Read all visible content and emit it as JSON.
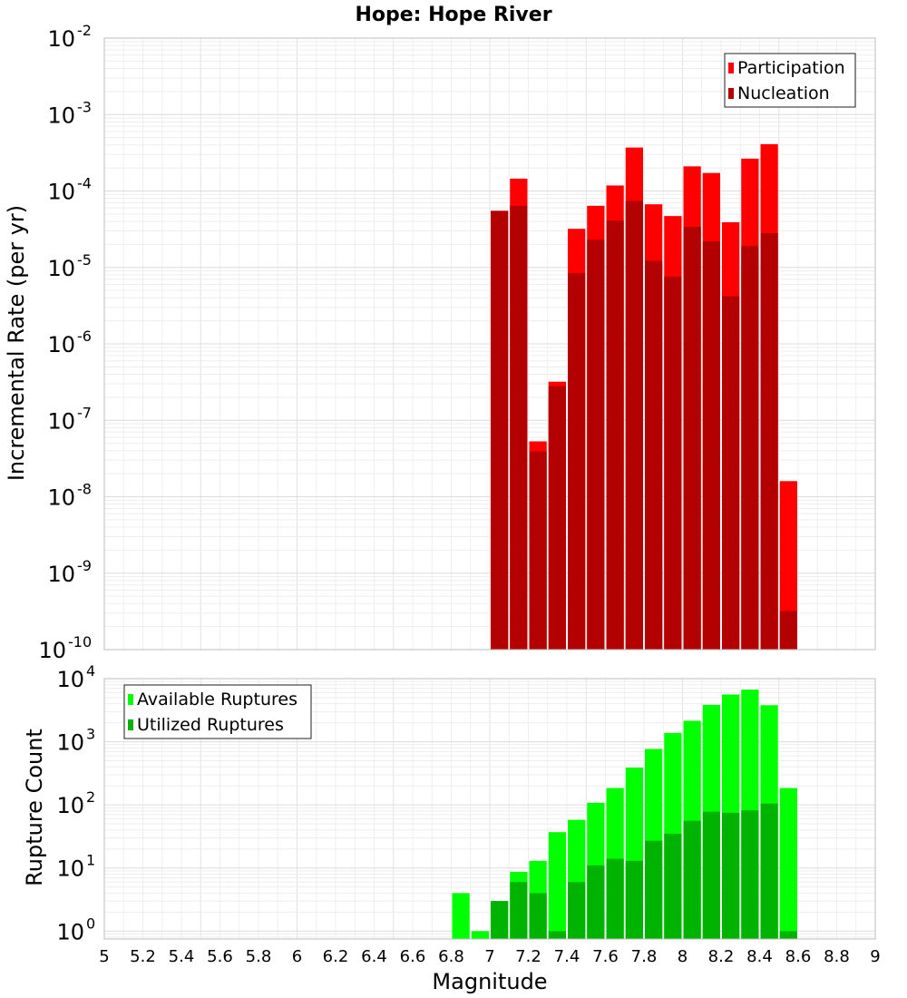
{
  "chart_data": [
    {
      "type": "bar",
      "title": "Hope: Hope River",
      "xlabel": "",
      "ylabel": "Incremental Rate (per yr)",
      "yscale": "log",
      "ylim": [
        1e-10,
        0.01
      ],
      "xlim": [
        5,
        9
      ],
      "y_tick_base": "10",
      "y_tick_exponents": [
        "-10",
        "-9",
        "-8",
        "-7",
        "-6",
        "-5",
        "-4",
        "-3",
        "-2"
      ],
      "grid": true,
      "legend_position": "top-right",
      "bar_width": 0.1,
      "x": [
        7.05,
        7.15,
        7.25,
        7.35,
        7.45,
        7.55,
        7.65,
        7.75,
        7.85,
        7.95,
        8.05,
        8.15,
        8.25,
        8.35,
        8.45,
        8.55
      ],
      "series": [
        {
          "name": "Participation",
          "color": "#ff0000",
          "values": [
            5.5e-05,
            0.000145,
            5.3e-08,
            3.2e-07,
            3.2e-05,
            6.4e-05,
            0.000118,
            0.00037,
            6.7e-05,
            4.7e-05,
            0.00021,
            0.000172,
            3.9e-05,
            0.000265,
            0.00041,
            1.6e-08
          ]
        },
        {
          "name": "Nucleation",
          "color": "#b30000",
          "values": [
            5.5e-05,
            6.4e-05,
            3.9e-08,
            2.8e-07,
            8.4e-06,
            2.3e-05,
            4.1e-05,
            7.4e-05,
            1.22e-05,
            7.6e-06,
            3.4e-05,
            2.2e-05,
            4.2e-06,
            1.9e-05,
            2.8e-05,
            3.2e-10
          ]
        }
      ]
    },
    {
      "type": "bar",
      "title": "",
      "xlabel": "Magnitude",
      "ylabel": "Rupture Count",
      "yscale": "log",
      "ylim": [
        0.75,
        10000
      ],
      "xlim": [
        5,
        9
      ],
      "x_tick_labels": [
        "5",
        "5.2",
        "5.4",
        "5.6",
        "5.8",
        "6",
        "6.2",
        "6.4",
        "6.6",
        "6.8",
        "7",
        "7.2",
        "7.4",
        "7.6",
        "7.8",
        "8",
        "8.2",
        "8.4",
        "8.6",
        "8.8",
        "9"
      ],
      "y_tick_base": "10",
      "y_tick_exponents": [
        "0",
        "1",
        "2",
        "3",
        "4"
      ],
      "grid": true,
      "legend_position": "top-left",
      "bar_width": 0.1,
      "x": [
        6.85,
        6.95,
        7.05,
        7.15,
        7.25,
        7.35,
        7.45,
        7.55,
        7.65,
        7.75,
        7.85,
        7.95,
        8.05,
        8.15,
        8.25,
        8.35,
        8.45,
        8.55
      ],
      "series": [
        {
          "name": "Available Ruptures",
          "color": "#00ff00",
          "values": [
            4,
            1,
            3,
            8.7,
            13,
            37,
            58,
            108,
            185,
            390,
            770,
            1380,
            2150,
            3850,
            5600,
            6700,
            3800,
            185
          ]
        },
        {
          "name": "Utilized Ruptures",
          "color": "#00b300",
          "values": [
            0,
            0,
            3,
            6,
            4,
            1,
            6,
            11,
            14,
            13,
            27,
            35,
            56,
            78,
            75,
            82,
            105,
            1
          ]
        }
      ]
    }
  ]
}
